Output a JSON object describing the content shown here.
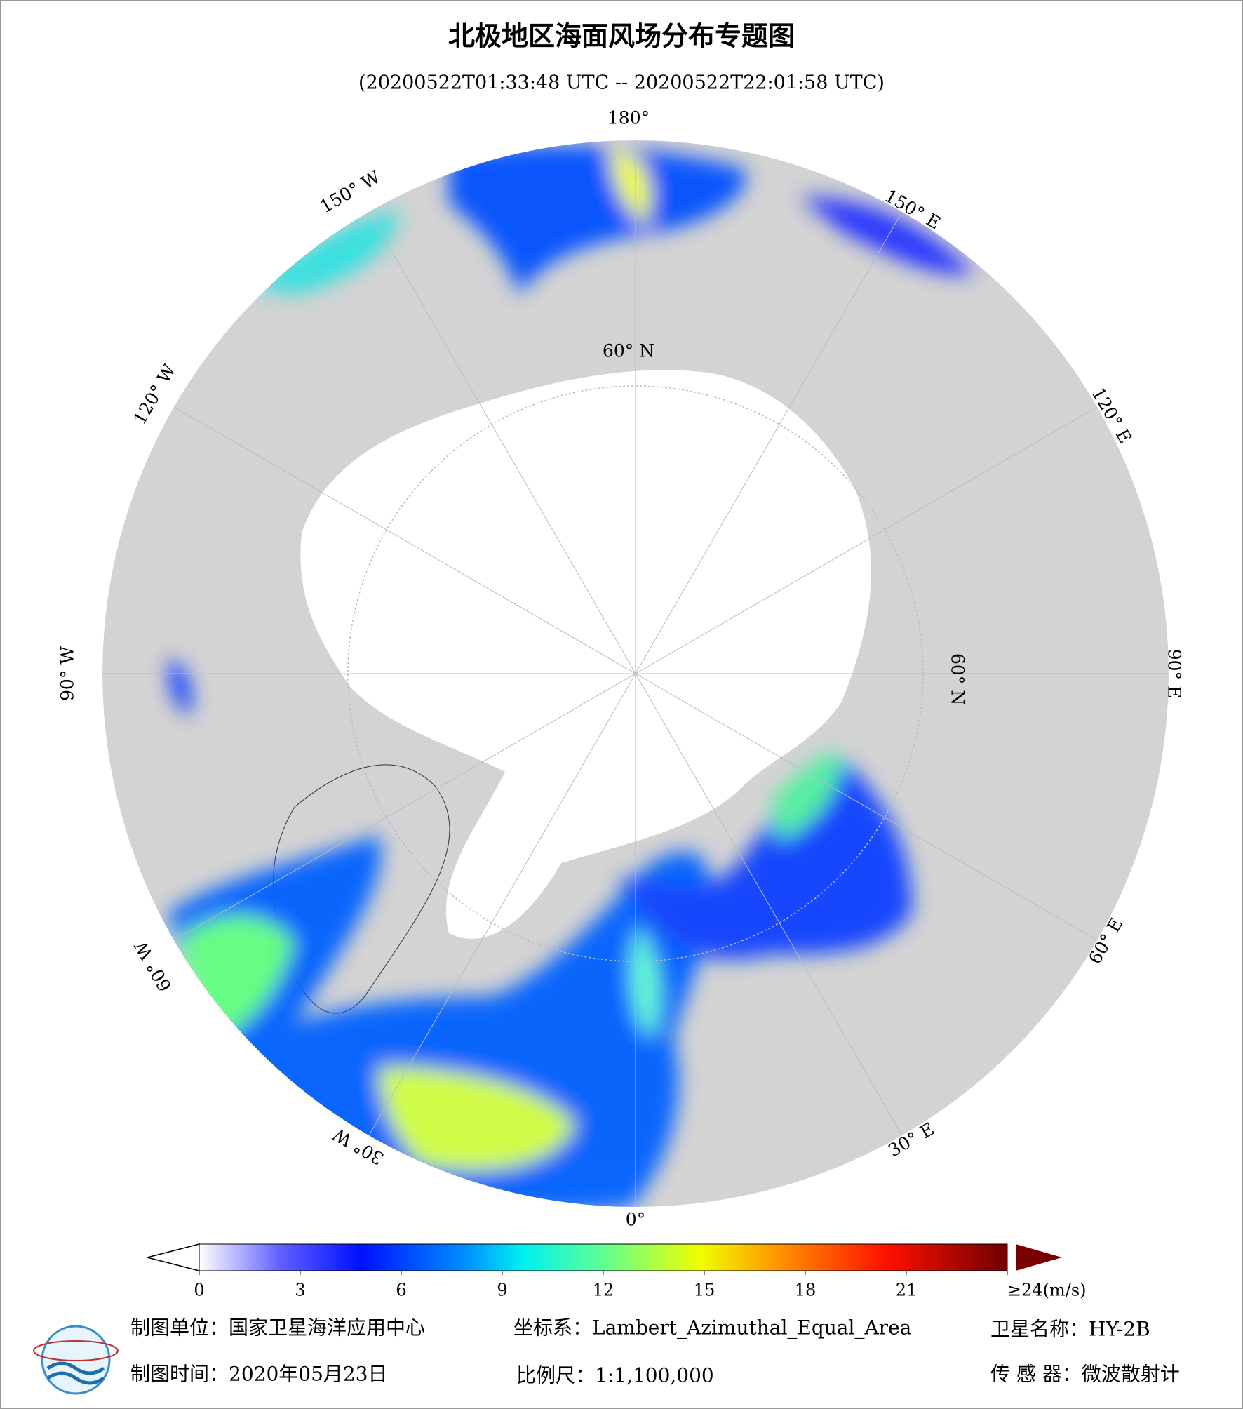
{
  "header": {
    "title": "北极地区海面风场分布专题图",
    "subtitle": "(20200522T01:33:48 UTC -- 20200522T22:01:58 UTC)"
  },
  "map": {
    "longitude_labels": [
      "180°",
      "150° E",
      "120° E",
      "90° E",
      "60° E",
      "30° E",
      "0°",
      "30° W",
      "60° W",
      "90° W",
      "120° W",
      "150° W"
    ],
    "latitude_label": "60° N"
  },
  "colorbar": {
    "range": [
      0,
      24
    ],
    "ticks": [
      0,
      3,
      6,
      9,
      12,
      15,
      18,
      21,
      {
        "value": 24,
        "label": "≥24(m/s)"
      }
    ]
  },
  "footer": {
    "items": [
      "制图单位：国家卫星海洋应用中心",
      "坐标系：Lambert_Azimuthal_Equal_Area",
      "卫星名称：HY-2B",
      "制图时间：2020年05月23日",
      "比例尺：1:1,100,000",
      "传 感 器：微波散射计"
    ]
  }
}
